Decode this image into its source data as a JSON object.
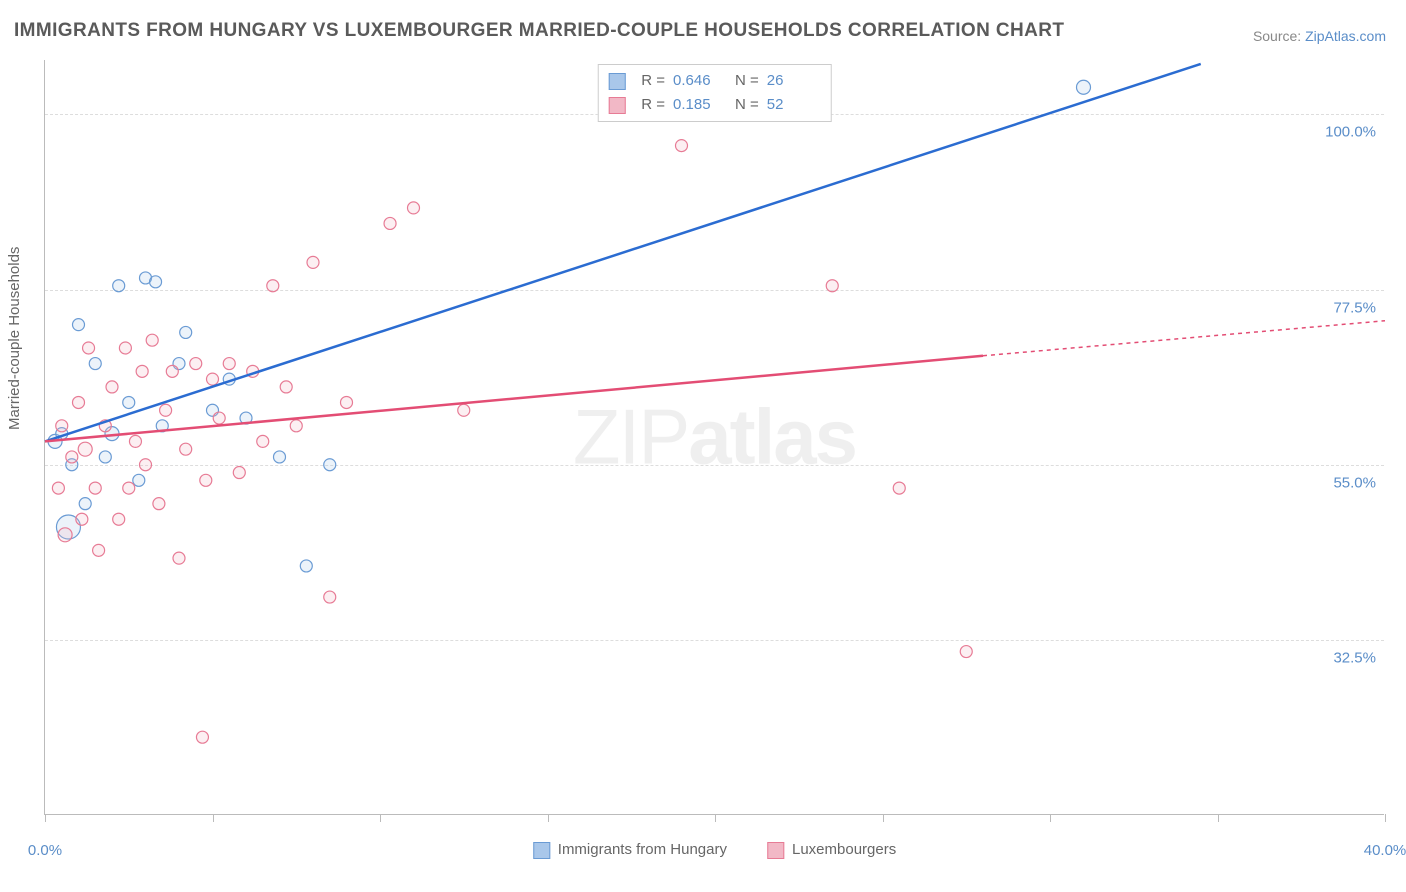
{
  "title": "IMMIGRANTS FROM HUNGARY VS LUXEMBOURGER MARRIED-COUPLE HOUSEHOLDS CORRELATION CHART",
  "source_prefix": "Source: ",
  "source_link": "ZipAtlas.com",
  "ylabel": "Married-couple Households",
  "watermark_light": "ZIP",
  "watermark_bold": "atlas",
  "chart": {
    "type": "scatter-with-regression",
    "xlim": [
      0,
      40
    ],
    "ylim": [
      10,
      107
    ],
    "x_ticks": [
      0,
      5,
      10,
      15,
      20,
      25,
      30,
      35,
      40
    ],
    "x_tick_labels": {
      "0": "0.0%",
      "40": "40.0%"
    },
    "y_gridlines": [
      32.5,
      55.0,
      77.5,
      100.0
    ],
    "y_tick_labels": [
      "32.5%",
      "55.0%",
      "77.5%",
      "100.0%"
    ],
    "background_color": "#ffffff",
    "grid_color": "#dddddd",
    "axis_color": "#bbbbbb",
    "text_color": "#666666",
    "value_color": "#5a8dc8",
    "series": [
      {
        "key": "hungary",
        "label": "Immigrants from Hungary",
        "color_fill": "#a9c7ea",
        "color_stroke": "#6a9bd4",
        "line_color": "#2b6cd1",
        "R": "0.646",
        "N": "26",
        "regression": {
          "x1": 0,
          "y1": 58,
          "x2": 34.5,
          "y2": 106.5
        },
        "points": [
          {
            "x": 0.3,
            "y": 58,
            "r": 7
          },
          {
            "x": 0.5,
            "y": 59,
            "r": 6
          },
          {
            "x": 0.7,
            "y": 47,
            "r": 12
          },
          {
            "x": 0.8,
            "y": 55,
            "r": 6
          },
          {
            "x": 1.0,
            "y": 73,
            "r": 6
          },
          {
            "x": 1.2,
            "y": 50,
            "r": 6
          },
          {
            "x": 1.5,
            "y": 68,
            "r": 6
          },
          {
            "x": 1.8,
            "y": 56,
            "r": 6
          },
          {
            "x": 2.0,
            "y": 59,
            "r": 7
          },
          {
            "x": 2.2,
            "y": 78,
            "r": 6
          },
          {
            "x": 2.5,
            "y": 63,
            "r": 6
          },
          {
            "x": 2.8,
            "y": 53,
            "r": 6
          },
          {
            "x": 3.0,
            "y": 79,
            "r": 6
          },
          {
            "x": 3.3,
            "y": 78.5,
            "r": 6
          },
          {
            "x": 3.5,
            "y": 60,
            "r": 6
          },
          {
            "x": 4.0,
            "y": 68,
            "r": 6
          },
          {
            "x": 4.2,
            "y": 72,
            "r": 6
          },
          {
            "x": 5.0,
            "y": 62,
            "r": 6
          },
          {
            "x": 5.5,
            "y": 66,
            "r": 6
          },
          {
            "x": 6.0,
            "y": 61,
            "r": 6
          },
          {
            "x": 7.0,
            "y": 56,
            "r": 6
          },
          {
            "x": 7.8,
            "y": 42,
            "r": 6
          },
          {
            "x": 8.5,
            "y": 55,
            "r": 6
          },
          {
            "x": 31.0,
            "y": 103.5,
            "r": 7
          }
        ]
      },
      {
        "key": "lux",
        "label": "Luxembourgers",
        "color_fill": "#f2b8c6",
        "color_stroke": "#e77b95",
        "line_color": "#e34d74",
        "R": "0.185",
        "N": "52",
        "regression": {
          "x1": 0,
          "y1": 58,
          "x2": 28,
          "y2": 69
        },
        "regression_dash": {
          "x1": 28,
          "y1": 69,
          "x2": 40,
          "y2": 73.5
        },
        "points": [
          {
            "x": 0.4,
            "y": 52,
            "r": 6
          },
          {
            "x": 0.5,
            "y": 60,
            "r": 6
          },
          {
            "x": 0.6,
            "y": 46,
            "r": 7
          },
          {
            "x": 0.8,
            "y": 56,
            "r": 6
          },
          {
            "x": 1.0,
            "y": 63,
            "r": 6
          },
          {
            "x": 1.1,
            "y": 48,
            "r": 6
          },
          {
            "x": 1.2,
            "y": 57,
            "r": 7
          },
          {
            "x": 1.3,
            "y": 70,
            "r": 6
          },
          {
            "x": 1.5,
            "y": 52,
            "r": 6
          },
          {
            "x": 1.6,
            "y": 44,
            "r": 6
          },
          {
            "x": 1.8,
            "y": 60,
            "r": 6
          },
          {
            "x": 2.0,
            "y": 65,
            "r": 6
          },
          {
            "x": 2.2,
            "y": 48,
            "r": 6
          },
          {
            "x": 2.4,
            "y": 70,
            "r": 6
          },
          {
            "x": 2.5,
            "y": 52,
            "r": 6
          },
          {
            "x": 2.7,
            "y": 58,
            "r": 6
          },
          {
            "x": 2.9,
            "y": 67,
            "r": 6
          },
          {
            "x": 3.0,
            "y": 55,
            "r": 6
          },
          {
            "x": 3.2,
            "y": 71,
            "r": 6
          },
          {
            "x": 3.4,
            "y": 50,
            "r": 6
          },
          {
            "x": 3.6,
            "y": 62,
            "r": 6
          },
          {
            "x": 3.8,
            "y": 67,
            "r": 6
          },
          {
            "x": 4.0,
            "y": 43,
            "r": 6
          },
          {
            "x": 4.2,
            "y": 57,
            "r": 6
          },
          {
            "x": 4.5,
            "y": 68,
            "r": 6
          },
          {
            "x": 4.7,
            "y": 20,
            "r": 6
          },
          {
            "x": 4.8,
            "y": 53,
            "r": 6
          },
          {
            "x": 5.0,
            "y": 66,
            "r": 6
          },
          {
            "x": 5.2,
            "y": 61,
            "r": 6
          },
          {
            "x": 5.5,
            "y": 68,
            "r": 6
          },
          {
            "x": 5.8,
            "y": 54,
            "r": 6
          },
          {
            "x": 6.2,
            "y": 67,
            "r": 6
          },
          {
            "x": 6.5,
            "y": 58,
            "r": 6
          },
          {
            "x": 6.8,
            "y": 78,
            "r": 6
          },
          {
            "x": 7.2,
            "y": 65,
            "r": 6
          },
          {
            "x": 7.5,
            "y": 60,
            "r": 6
          },
          {
            "x": 8.0,
            "y": 81,
            "r": 6
          },
          {
            "x": 8.5,
            "y": 38,
            "r": 6
          },
          {
            "x": 9.0,
            "y": 63,
            "r": 6
          },
          {
            "x": 10.3,
            "y": 86,
            "r": 6
          },
          {
            "x": 11.0,
            "y": 88,
            "r": 6
          },
          {
            "x": 12.5,
            "y": 62,
            "r": 6
          },
          {
            "x": 19.0,
            "y": 96,
            "r": 6
          },
          {
            "x": 23.5,
            "y": 78,
            "r": 6
          },
          {
            "x": 25.5,
            "y": 52,
            "r": 6
          },
          {
            "x": 27.5,
            "y": 31,
            "r": 6
          }
        ]
      }
    ]
  }
}
